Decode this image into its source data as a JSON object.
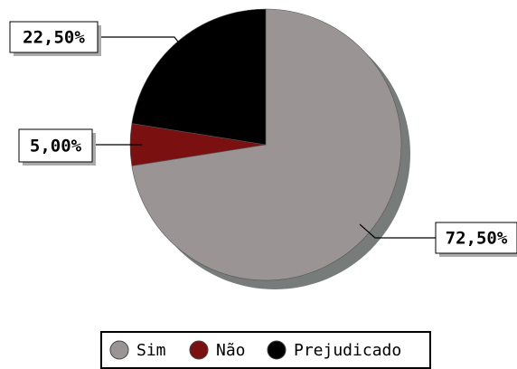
{
  "chart_data": {
    "type": "pie",
    "categories": [
      "Sim",
      "Não",
      "Prejudicado"
    ],
    "values": [
      72.5,
      5,
      22.5
    ],
    "value_labels": [
      "72,50%",
      "5,00%",
      "22,50%"
    ],
    "colors": [
      "#9a9594",
      "#7a1010",
      "#000000"
    ]
  }
}
